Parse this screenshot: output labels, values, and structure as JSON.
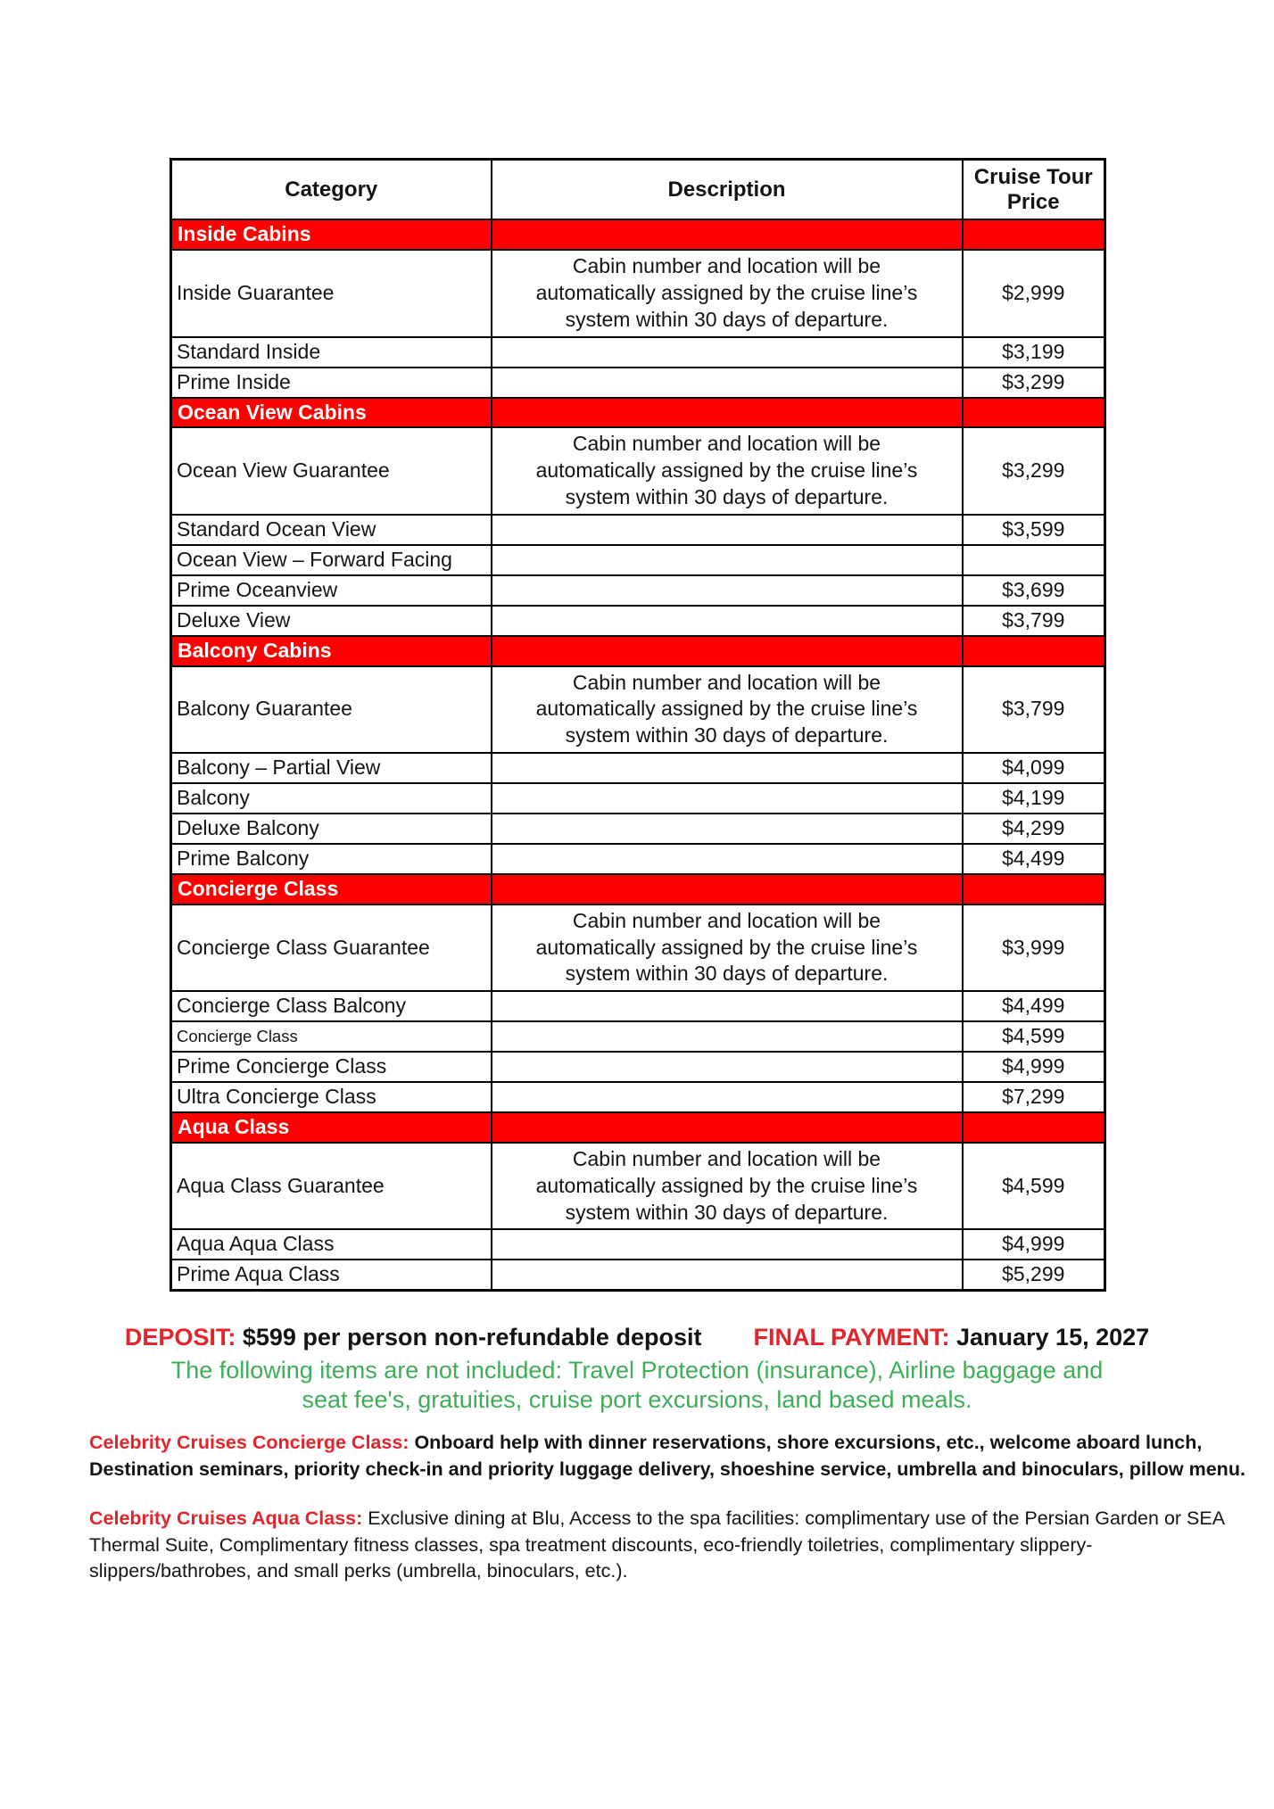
{
  "table": {
    "columns": [
      "Category",
      "Description",
      "Cruise Tour Price"
    ],
    "section_fill_color": "#fe0000",
    "guarantee_description_lines": [
      "Cabin number and location will be",
      "automatically assigned by the cruise line’s",
      "system within 30 days of departure."
    ],
    "sections": [
      {
        "header": "Inside Cabins",
        "rows": [
          {
            "category": "Inside Guarantee",
            "guarantee": true,
            "price": "$2,999"
          },
          {
            "category": "Standard Inside",
            "price": "$3,199"
          },
          {
            "category": "Prime Inside",
            "price": "$3,299"
          }
        ]
      },
      {
        "header": "Ocean View Cabins",
        "rows": [
          {
            "category": "Ocean View Guarantee",
            "guarantee": true,
            "price": "$3,299"
          },
          {
            "category": "Standard Ocean View",
            "price": "$3,599"
          },
          {
            "category": "Ocean View – Forward Facing",
            "price": ""
          },
          {
            "category": "Prime Oceanview",
            "price": "$3,699"
          },
          {
            "category": "Deluxe View",
            "price": "$3,799"
          }
        ]
      },
      {
        "header": "Balcony Cabins",
        "rows": [
          {
            "category": "Balcony Guarantee",
            "guarantee": true,
            "price": "$3,799"
          },
          {
            "category": "Balcony – Partial View",
            "price": "$4,099"
          },
          {
            "category": "Balcony",
            "price": "$4,199"
          },
          {
            "category": "Deluxe Balcony",
            "price": "$4,299"
          },
          {
            "category": "Prime Balcony",
            "price": "$4,499"
          }
        ]
      },
      {
        "header": "Concierge Class",
        "rows": [
          {
            "category": "Concierge Class Guarantee",
            "guarantee": true,
            "price": "$3,999"
          },
          {
            "category": "Concierge Class Balcony",
            "price": "$4,499"
          },
          {
            "category": "Concierge Class",
            "price": "$4,599",
            "small": true
          },
          {
            "category": "Prime Concierge Class",
            "price": "$4,999"
          },
          {
            "category": "Ultra Concierge Class",
            "price": "$7,299"
          }
        ]
      },
      {
        "header": "Aqua Class",
        "rows": [
          {
            "category": "Aqua Class Guarantee",
            "guarantee": true,
            "price": "$4,599"
          },
          {
            "category": "Aqua Aqua Class",
            "price": "$4,999"
          },
          {
            "category": "Prime Aqua Class",
            "price": "$5,299"
          }
        ]
      }
    ]
  },
  "payment": {
    "deposit_label": "DEPOSIT:",
    "deposit_text": " $599 per person non-refundable deposit",
    "final_payment_label": "FINAL PAYMENT:",
    "final_payment_text": " January 15, 2027"
  },
  "not_included": {
    "color": "#3fad58",
    "lines": [
      "The following items are not included: Travel Protection (insurance), Airline baggage and",
      "seat fee's, gratuities, cruise port excursions, land based meals."
    ]
  },
  "notes": {
    "accent_red": "#e2252b",
    "concierge": {
      "lead": "Celebrity Cruises Concierge Class:",
      "line1_rest": " Onboard help with dinner reservations, shore excursions, etc., welcome aboard lunch,",
      "line2": "Destination seminars, priority check-in and priority luggage delivery, shoeshine service, umbrella and binoculars, pillow menu."
    },
    "aqua": {
      "lead": "Celebrity Cruises Aqua Class:",
      "line1_rest": " Exclusive dining at Blu, Access to the spa facilities: complimentary use of the Persian Garden or SEA",
      "line2": "Thermal Suite, Complimentary fitness classes, spa treatment discounts, eco-friendly toiletries, complimentary slippery-",
      "line3": "slippers/bathrobes, and small perks (umbrella, binoculars, etc.)."
    }
  }
}
